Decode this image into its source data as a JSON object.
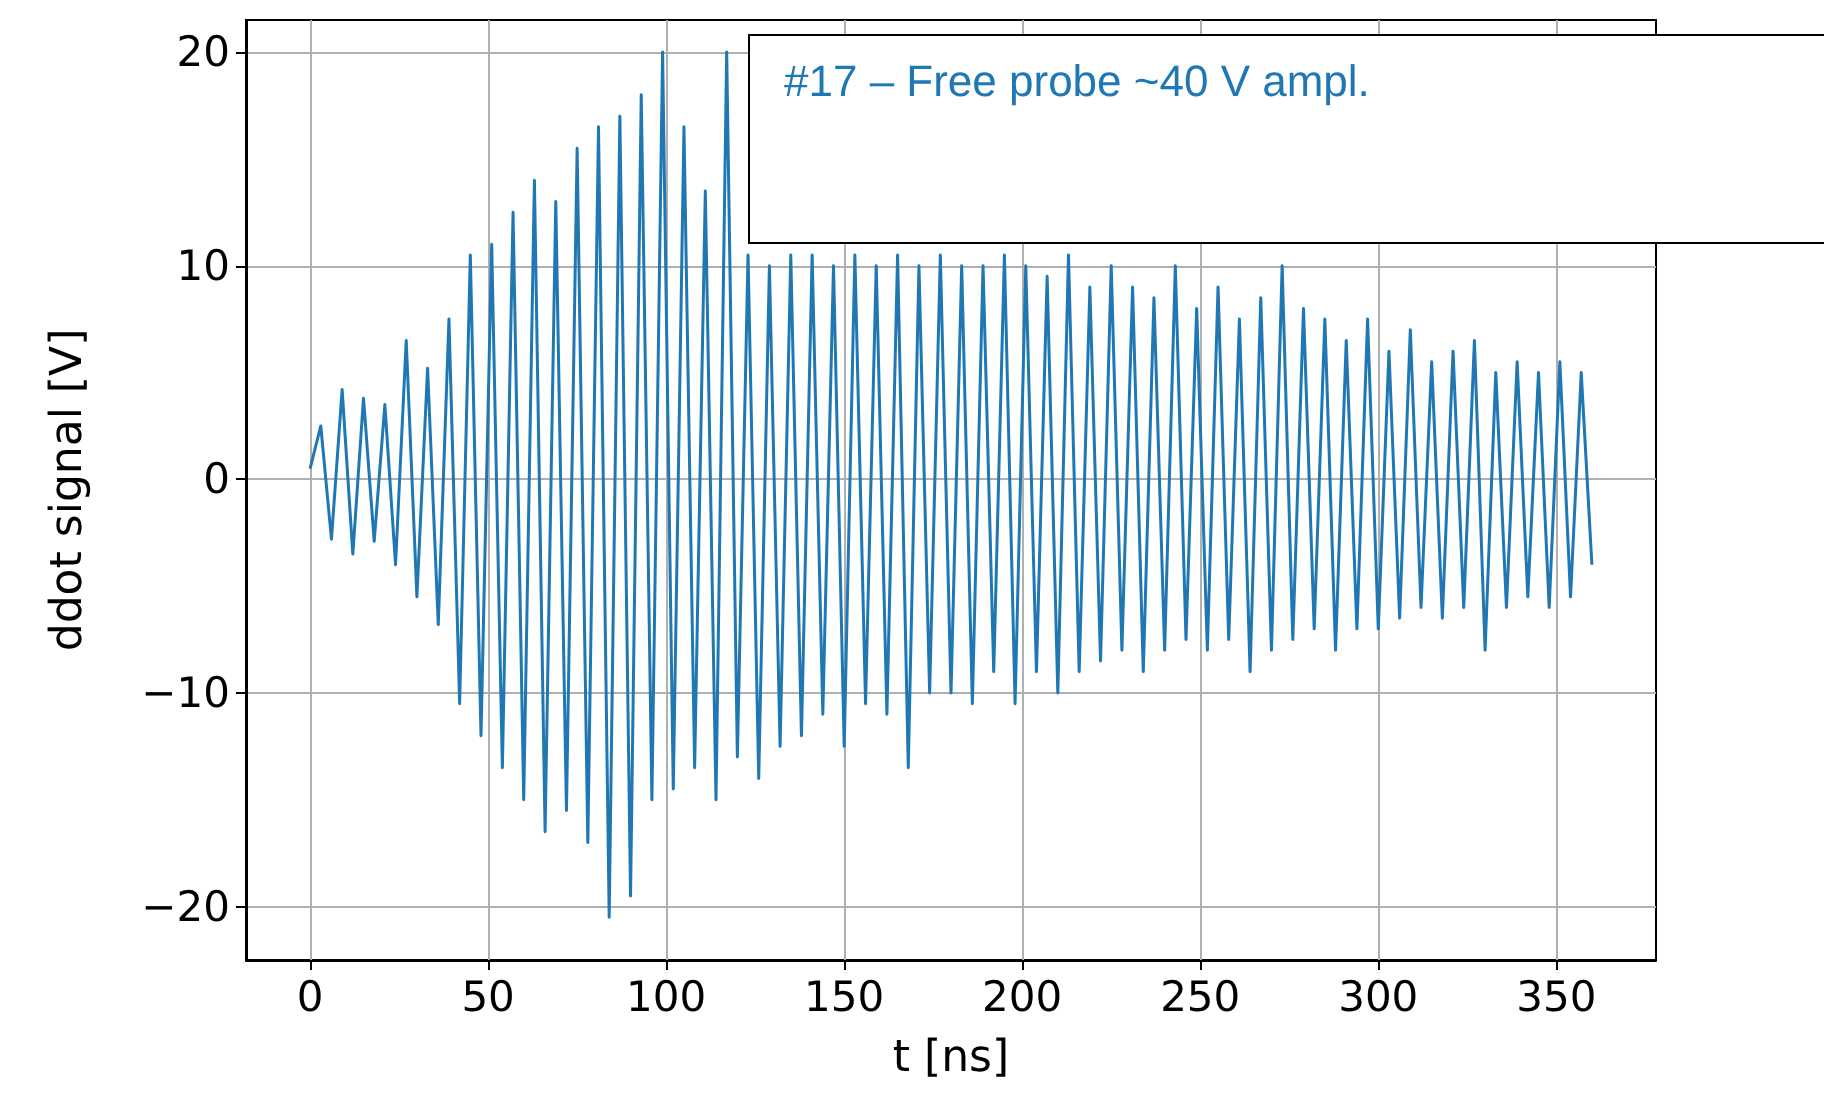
{
  "chart_data": {
    "type": "line",
    "xlabel": "t [ns]",
    "ylabel": "ddot signal [V]",
    "annotations": [
      "#17 – Free probe ~40 V ampl."
    ],
    "xlim": [
      -18,
      378
    ],
    "xticks": [
      0,
      50,
      100,
      150,
      200,
      250,
      300,
      350
    ],
    "ylim": [
      -22.5,
      21.5
    ],
    "yticks": [
      -20,
      -10,
      0,
      10,
      20
    ],
    "grid": true,
    "marker": "none",
    "line_style": "solid",
    "x": [
      0,
      3,
      6,
      9,
      12,
      15,
      18,
      21,
      24,
      27,
      30,
      33,
      36,
      39,
      42,
      45,
      48,
      51,
      54,
      57,
      60,
      63,
      66,
      69,
      72,
      75,
      78,
      81,
      84,
      87,
      90,
      93,
      96,
      99,
      102,
      105,
      108,
      111,
      114,
      117,
      120,
      123,
      126,
      129,
      132,
      135,
      138,
      141,
      144,
      147,
      150,
      153,
      156,
      159,
      162,
      165,
      168,
      171,
      174,
      177,
      180,
      183,
      186,
      189,
      192,
      195,
      198,
      201,
      204,
      207,
      210,
      213,
      216,
      219,
      222,
      225,
      228,
      231,
      234,
      237,
      240,
      243,
      246,
      249,
      252,
      255,
      258,
      261,
      264,
      267,
      270,
      273,
      276,
      279,
      282,
      285,
      288,
      291,
      294,
      297,
      300,
      303,
      306,
      309,
      312,
      315,
      318,
      321,
      324,
      327,
      330,
      333,
      336,
      339,
      342,
      345,
      348,
      351,
      354,
      357,
      360
    ],
    "series": [
      {
        "color": "#1f77b4",
        "values": [
          0.5,
          2.5,
          -2.8,
          4.2,
          -3.5,
          3.8,
          -2.9,
          3.5,
          -4,
          6.5,
          -5.5,
          5.2,
          -6.8,
          7.5,
          -10.5,
          10.5,
          -12,
          11,
          -13.5,
          12.5,
          -15,
          14,
          -16.5,
          13,
          -15.5,
          15.5,
          -17,
          16.5,
          -20.5,
          17,
          -19.5,
          18,
          -15,
          20,
          -14.5,
          16.5,
          -13.5,
          13.5,
          -15,
          20,
          -13,
          10.5,
          -14,
          10,
          -12.5,
          10.5,
          -12,
          10.5,
          -11,
          10,
          -12.5,
          10.5,
          -10.5,
          10,
          -11,
          10.5,
          -13.5,
          10,
          -10,
          10.5,
          -10,
          10,
          -10.5,
          10,
          -9,
          10.5,
          -10.5,
          10,
          -9,
          9.5,
          -10,
          10.5,
          -9,
          9,
          -8.5,
          10,
          -8,
          9,
          -9,
          8.5,
          -8,
          10,
          -7.5,
          8,
          -8,
          9,
          -7.5,
          7.5,
          -9,
          8.5,
          -8,
          10,
          -7.5,
          8,
          -7,
          7.5,
          -8,
          6.5,
          -7,
          7.5,
          -7,
          6,
          -6.5,
          7,
          -6,
          5.5,
          -6.5,
          6,
          -6,
          6.5,
          -8,
          5,
          -6,
          5.5,
          -5.5,
          5,
          -6,
          5.5,
          -5.5,
          5,
          -4
        ]
      }
    ]
  }
}
